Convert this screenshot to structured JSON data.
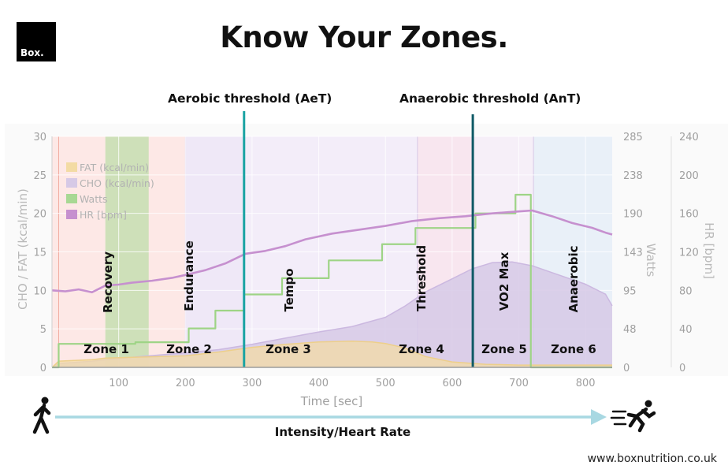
{
  "header": {
    "logo_text": "Box.",
    "title": "Know Your Zones."
  },
  "thresholds": {
    "aerobic": {
      "label": "Aerobic threshold (AeT)",
      "x": 288
    },
    "anaerobic": {
      "label": "Anaerobic threshold (AnT)",
      "x": 631
    }
  },
  "footer": {
    "intensity_label": "Intensity/Heart Rate",
    "website": "www.boxnutrition.co.uk"
  },
  "colors": {
    "fat": "#f3dba4",
    "cho": "#d6c9e6",
    "watts": "#a8d894",
    "hr": "#c690cf",
    "threshold_line": "#1aa3a3",
    "anaerobic_line": "#0f5a66",
    "arrow": "#a8d8e2"
  },
  "icons": {
    "walker": "walking-person-icon",
    "runner": "sprinting-person-icon"
  },
  "chart_data": {
    "type": "area",
    "xlabel": "Time [sec]",
    "xlim": [
      0,
      840
    ],
    "xticks": [
      100,
      200,
      300,
      400,
      500,
      600,
      700,
      800
    ],
    "axes": {
      "left": {
        "label": "CHO / FAT (kcal/min)",
        "ticks": [
          0,
          5,
          10,
          15,
          20,
          25,
          30
        ],
        "lim": [
          0,
          30
        ]
      },
      "watts": {
        "label": "Watts",
        "ticks": [
          0,
          48,
          95,
          143,
          190,
          238,
          285
        ],
        "lim": [
          0,
          285
        ]
      },
      "hr": {
        "label": "HR [bpm]",
        "ticks": [
          0,
          40,
          80,
          120,
          160,
          200,
          240
        ],
        "lim": [
          0,
          240
        ]
      }
    },
    "legend": {
      "placement": "top-left",
      "entries": [
        "FAT (kcal/min)",
        "CHO (kcal/min)",
        "Watts",
        "HR [bpm]"
      ]
    },
    "zones": [
      {
        "name": "Zone 1",
        "label": "Recovery",
        "start": 0,
        "end": 200,
        "color": "#fde8e6"
      },
      {
        "name": "Zone 2",
        "label": "Endurance",
        "start": 200,
        "end": 288,
        "color": "#efe8f7"
      },
      {
        "name": "Zone 3",
        "label": "Tempo",
        "start": 288,
        "end": 548,
        "color": "#f3edf9"
      },
      {
        "name": "Zone 4",
        "label": "Threshold",
        "start": 548,
        "end": 631,
        "color": "#f8e6ef"
      },
      {
        "name": "Zone 5",
        "label": "VO2 Max",
        "start": 631,
        "end": 722,
        "color": "#f6eff8"
      },
      {
        "name": "Zone 6",
        "label": "Anaerobic",
        "start": 722,
        "end": 840,
        "color": "#e9f0f8"
      }
    ],
    "recovery_band": {
      "start": 80,
      "end": 145
    },
    "series": [
      {
        "name": "FAT (kcal/min)",
        "axis": "left",
        "x": [
          0,
          10,
          60,
          80,
          120,
          200,
          250,
          300,
          350,
          400,
          450,
          480,
          500,
          530,
          560,
          600,
          650,
          700,
          722,
          760,
          800,
          840
        ],
        "values": [
          0,
          0.8,
          1.0,
          1.2,
          1.3,
          1.5,
          2.0,
          2.6,
          3.0,
          3.3,
          3.4,
          3.3,
          3.1,
          2.5,
          1.4,
          0.7,
          0.4,
          0.3,
          0.3,
          0.3,
          0.3,
          0.3
        ]
      },
      {
        "name": "CHO (kcal/min)",
        "axis": "left",
        "x": [
          0,
          10,
          60,
          80,
          120,
          160,
          200,
          250,
          300,
          350,
          400,
          450,
          500,
          530,
          560,
          600,
          630,
          660,
          690,
          720,
          760,
          800,
          830,
          840
        ],
        "values": [
          0,
          0.5,
          0.8,
          1.0,
          1.3,
          1.6,
          1.9,
          2.3,
          3.0,
          3.8,
          4.6,
          5.3,
          6.5,
          8.0,
          9.8,
          11.5,
          12.8,
          13.6,
          13.7,
          13.2,
          12.0,
          10.8,
          9.5,
          8.0
        ]
      },
      {
        "name": "Watts",
        "axis": "watts",
        "x": [
          0,
          10,
          10,
          125,
          125,
          205,
          205,
          245,
          245,
          288,
          288,
          345,
          345,
          415,
          415,
          495,
          495,
          545,
          545,
          635,
          635,
          695,
          695,
          718,
          718,
          850
        ],
        "values": [
          0,
          0,
          29,
          29,
          31,
          31,
          48,
          48,
          70,
          70,
          90,
          90,
          110,
          110,
          132,
          132,
          152,
          152,
          172,
          172,
          190,
          190,
          213,
          213,
          0,
          0
        ]
      },
      {
        "name": "HR [bpm]",
        "axis": "hr",
        "x": [
          0,
          20,
          40,
          60,
          80,
          100,
          120,
          150,
          180,
          200,
          230,
          260,
          290,
          320,
          350,
          380,
          420,
          460,
          500,
          540,
          580,
          620,
          660,
          700,
          720,
          750,
          780,
          810,
          830,
          840
        ],
        "values": [
          80,
          79,
          81,
          78,
          85,
          86,
          88,
          90,
          93,
          96,
          101,
          108,
          118,
          121,
          126,
          133,
          139,
          143,
          147,
          152,
          155,
          157,
          160,
          162,
          163,
          157,
          150,
          145,
          140,
          138
        ]
      }
    ]
  }
}
